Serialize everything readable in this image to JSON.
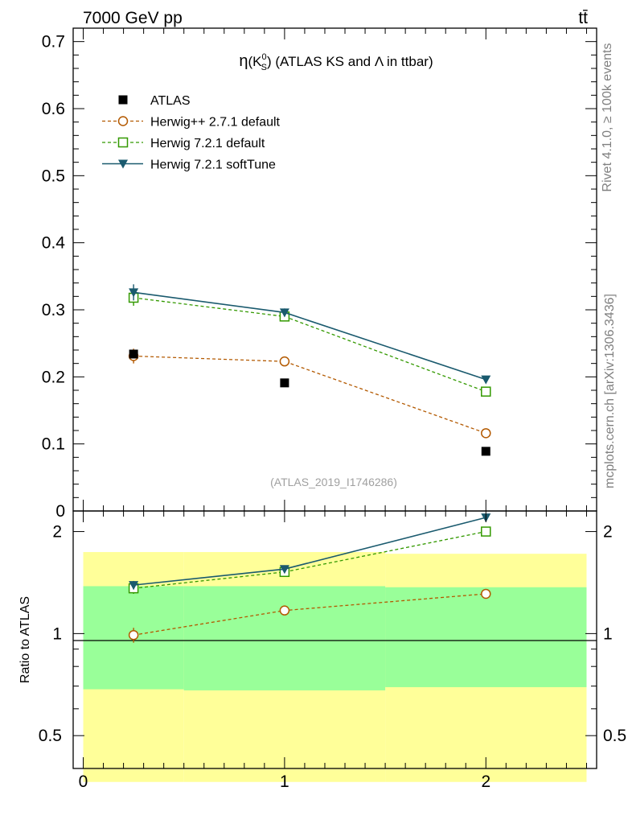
{
  "header": {
    "energy_label": "7000 GeV pp",
    "process_label": "tt̄"
  },
  "side": {
    "rivet": "Rivet 4.1.0, ≥ 100k events",
    "mcplots": "mcplots.cern.ch [arXiv:1306.3436]"
  },
  "chart_data": [
    {
      "type": "line",
      "panel": "main",
      "title": "η(K⁰S) (ATLAS KS and Λ in ttbar)",
      "title_parts": {
        "eta": "η",
        "open": "(K",
        "sup": "0",
        "sub": "S",
        "rest": ") (ATLAS KS and Λ in ttbar)"
      },
      "reference_label": "(ATLAS_2019_I1746286)",
      "xlabel": "",
      "ylabel": "",
      "xlim": [
        -0.05,
        2.55
      ],
      "ylim": [
        0,
        0.72
      ],
      "y_ticks": [
        0.1,
        0.2,
        0.3,
        0.4,
        0.5,
        0.6,
        0.7
      ],
      "y_tick_labels": [
        "0.1",
        "0.2",
        "0.3",
        "0.4",
        "0.5",
        "0.6",
        "0.7"
      ],
      "y_zero_label": "0",
      "legend_position": "top-left",
      "x": [
        0.25,
        1.0,
        2.0
      ],
      "series": [
        {
          "name": "ATLAS",
          "color": "#000000",
          "marker": "filled-square",
          "line": "none",
          "values": [
            0.234,
            0.191,
            0.089
          ],
          "errors": [
            0.003,
            0.002,
            0.002
          ]
        },
        {
          "name": "Herwig++ 2.7.1 default",
          "color": "#b35900",
          "marker": "open-circle",
          "line": "dashed",
          "values": [
            0.231,
            0.223,
            0.116
          ],
          "errors": [
            0.011,
            0.006,
            0.003
          ]
        },
        {
          "name": "Herwig 7.2.1 default",
          "color": "#339900",
          "marker": "open-square",
          "line": "dashed",
          "values": [
            0.318,
            0.29,
            0.178
          ],
          "errors": [
            0.012,
            0.007,
            0.004
          ]
        },
        {
          "name": "Herwig 7.2.1 softTune",
          "color": "#1a5a6e",
          "marker": "filled-triangle-down",
          "line": "solid",
          "values": [
            0.326,
            0.296,
            0.196
          ],
          "errors": [
            0.012,
            0.006,
            0.004
          ]
        }
      ]
    },
    {
      "type": "line",
      "panel": "ratio",
      "ylabel": "Ratio to ATLAS",
      "ylim": [
        0.4,
        2.3
      ],
      "y_scale": "log",
      "y_ticks": [
        0.5,
        1,
        2
      ],
      "y_tick_labels": [
        "0.5",
        "1",
        "2"
      ],
      "x_ticks": [
        0,
        1,
        2
      ],
      "x_tick_labels": [
        "0",
        "1",
        "2"
      ],
      "reference_line": 1,
      "bands": [
        {
          "name": "total uncertainty",
          "color": "#ffff99",
          "bins": [
            {
              "x0": 0.0,
              "x1": 0.5,
              "low": 0.365,
              "high": 1.74
            },
            {
              "x0": 0.5,
              "x1": 1.5,
              "low": 0.365,
              "high": 1.74
            },
            {
              "x0": 1.5,
              "x1": 2.5,
              "low": 0.365,
              "high": 1.72
            }
          ]
        },
        {
          "name": "stat uncertainty",
          "color": "#99ff99",
          "bins": [
            {
              "x0": 0.0,
              "x1": 0.5,
              "low": 0.685,
              "high": 1.38
            },
            {
              "x0": 0.5,
              "x1": 1.5,
              "low": 0.68,
              "high": 1.38
            },
            {
              "x0": 1.5,
              "x1": 2.5,
              "low": 0.695,
              "high": 1.37
            }
          ]
        }
      ],
      "x": [
        0.25,
        1.0,
        2.0
      ],
      "series": [
        {
          "name": "Herwig++ 2.7.1 default",
          "color": "#b35900",
          "marker": "open-circle",
          "line": "dashed",
          "values": [
            0.99,
            1.17,
            1.31
          ],
          "errors": [
            0.05,
            0.01,
            0.04
          ]
        },
        {
          "name": "Herwig 7.2.1 default",
          "color": "#339900",
          "marker": "open-square",
          "line": "dashed",
          "values": [
            1.36,
            1.52,
            2.0
          ],
          "errors": [
            0.05,
            0.01,
            0.04
          ]
        },
        {
          "name": "Herwig 7.2.1 softTune",
          "color": "#1a5a6e",
          "marker": "filled-triangle-down",
          "line": "solid",
          "values": [
            1.39,
            1.55,
            2.2
          ],
          "errors": [
            0.04,
            0.01,
            0.03
          ]
        }
      ]
    }
  ]
}
